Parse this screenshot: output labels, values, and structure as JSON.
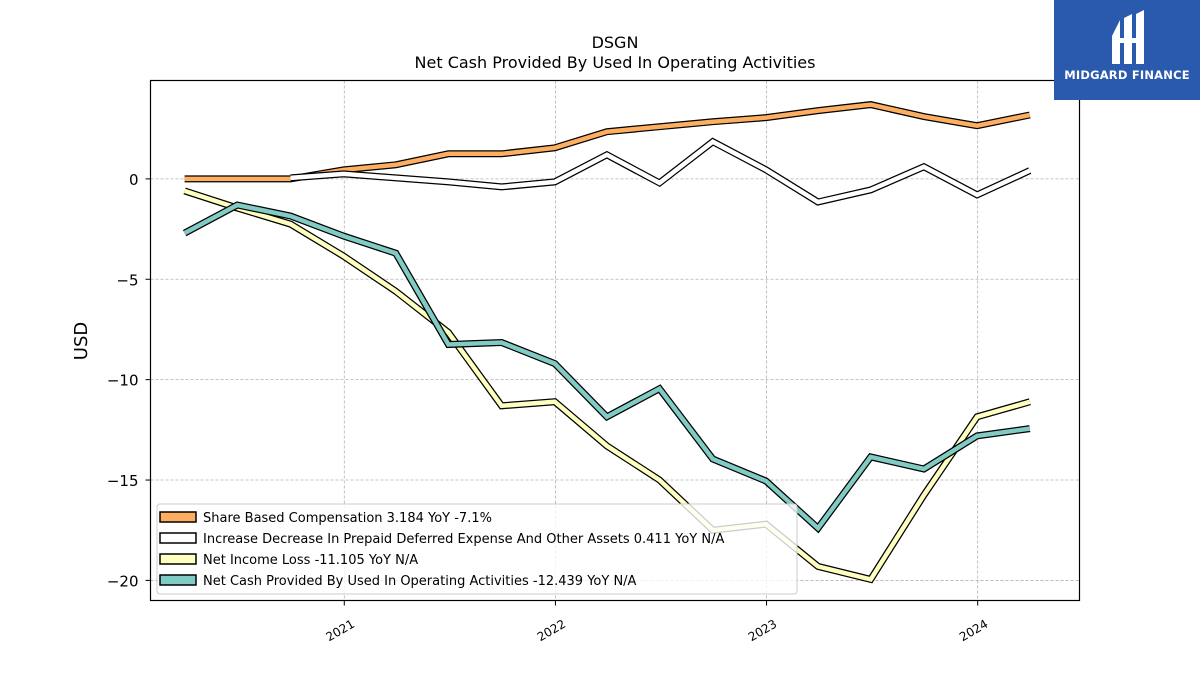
{
  "brand": {
    "name": "MIDGARD FINANCE",
    "bg_color": "#2a5aad",
    "icon": "midgard-logo-mark"
  },
  "chart_data": {
    "type": "line",
    "title": "DSGN",
    "subtitle": "Net Cash Provided By Used In Operating Activities",
    "ylabel": "USD",
    "xlabel": "",
    "ylim": [
      -21,
      4.9
    ],
    "xlim": [
      "2020-02-01",
      "2024-06-25"
    ],
    "yticks": [
      0,
      -5,
      -10,
      -15,
      -20
    ],
    "ytick_labels": [
      "0",
      "−5",
      "−10",
      "−15",
      "−20"
    ],
    "xticks": [
      "2021-01-01",
      "2022-01-01",
      "2023-01-01",
      "2024-01-01"
    ],
    "xtick_labels": [
      "2021",
      "2022",
      "2023",
      "2024"
    ],
    "grid": true,
    "legend_position": "lower-left",
    "x": [
      "2020-03-31",
      "2020-06-30",
      "2020-09-30",
      "2020-12-31",
      "2021-03-31",
      "2021-06-30",
      "2021-09-30",
      "2021-12-31",
      "2022-03-31",
      "2022-06-30",
      "2022-09-30",
      "2022-12-31",
      "2023-03-31",
      "2023-06-30",
      "2023-09-30",
      "2023-12-31",
      "2024-03-31"
    ],
    "series": [
      {
        "name": "Share Based Compensation",
        "legend_label": "Share Based Compensation  3.184 YoY -7.1%",
        "color": "#fdae61",
        "start_index": 0,
        "values": [
          0.0,
          0.0,
          0.0,
          0.45,
          0.7,
          1.25,
          1.25,
          1.55,
          2.35,
          2.6,
          2.85,
          3.05,
          3.4,
          3.7,
          3.1,
          2.65,
          3.184
        ]
      },
      {
        "name": "Increase Decrease In Prepaid Deferred Expense And Other Assets",
        "legend_label": "Increase Decrease In Prepaid Deferred Expense And Other Assets  0.411 YoY N/A",
        "color": "#ffffff",
        "start_index": 2,
        "values": [
          null,
          null,
          0.05,
          0.25,
          0.05,
          -0.15,
          -0.4,
          -0.15,
          1.2,
          -0.2,
          1.85,
          0.45,
          -1.15,
          -0.55,
          0.6,
          -0.8,
          0.411
        ]
      },
      {
        "name": "Net Income Loss",
        "legend_label": "Net Income Loss  -11.105 YoY N/A",
        "color": "#ffffbf",
        "start_index": 0,
        "values": [
          -0.6,
          -1.45,
          -2.25,
          -3.85,
          -5.6,
          -7.65,
          -11.3,
          -11.1,
          -13.3,
          -15.0,
          -17.5,
          -17.2,
          -19.3,
          -19.95,
          -15.75,
          -11.85,
          -11.105
        ]
      },
      {
        "name": "Net Cash Provided By Used In Operating Activities",
        "legend_label": "Net Cash Provided By Used In Operating Activities  -12.439 YoY N/A",
        "color": "#80cbc4",
        "start_index": 0,
        "values": [
          -2.7,
          -1.3,
          -1.85,
          -2.85,
          -3.7,
          -8.25,
          -8.15,
          -9.2,
          -11.85,
          -10.45,
          -13.95,
          -15.05,
          -17.4,
          -13.85,
          -14.45,
          -12.8,
          -12.439
        ]
      }
    ]
  }
}
